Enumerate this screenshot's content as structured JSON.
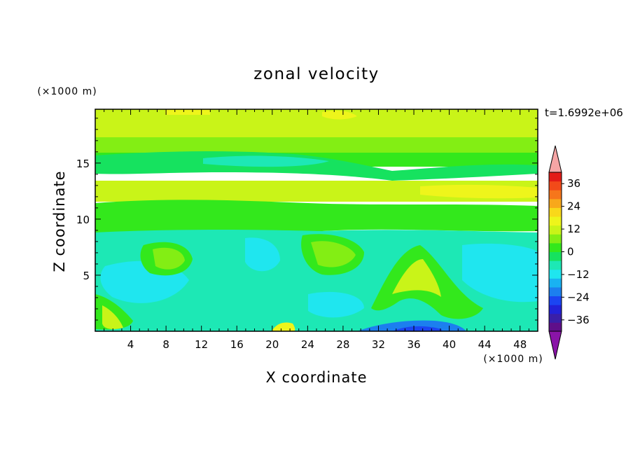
{
  "chart_data": {
    "type": "heatmap",
    "title": "zonal velocity",
    "xlabel": "X coordinate",
    "ylabel": "Z coordinate",
    "x_units": "(×1000 m)",
    "y_units": "(×1000 m)",
    "time_label": "t=1.6992e+06",
    "xlim": [
      0,
      50
    ],
    "ylim": [
      0,
      19.8
    ],
    "x_ticks": [
      4,
      8,
      12,
      16,
      20,
      24,
      28,
      32,
      36,
      40,
      44,
      48
    ],
    "x_tick_labels": [
      "4",
      "8",
      "12",
      "16",
      "20",
      "24",
      "28",
      "32",
      "36",
      "40",
      "44",
      "48"
    ],
    "y_ticks": [
      5,
      10,
      15
    ],
    "y_tick_labels": [
      "5",
      "10",
      "15"
    ],
    "colorbar": {
      "min": -42,
      "max": 42,
      "step": 6,
      "tick_values": [
        36,
        24,
        12,
        0,
        -12,
        -24,
        -36
      ],
      "tick_labels": [
        "36",
        "24",
        "12",
        "0",
        "−12",
        "−24",
        "−36"
      ],
      "colors": [
        "#5f0f8a",
        "#3a1fa8",
        "#2222d8",
        "#1b45f2",
        "#1c7fef",
        "#19b2f2",
        "#1fe6ef",
        "#1de8b5",
        "#16e25f",
        "#33e81c",
        "#83ee14",
        "#c9f418",
        "#eef51b",
        "#f9d81a",
        "#f8a81b",
        "#f6761b",
        "#f24a19",
        "#e31b17"
      ],
      "over_color": "#f6a5a5",
      "under_color": "#8a14a8"
    },
    "bands": [
      {
        "z_range": [
          17.2,
          19.8
        ],
        "value_range": [
          6,
          12
        ],
        "description_value": 8
      },
      {
        "z_range": [
          15.5,
          17.2
        ],
        "value_range": [
          0,
          6
        ],
        "description_value": 3
      },
      {
        "z_range": [
          13.2,
          15.5
        ],
        "value_range": [
          -6,
          6
        ],
        "description_value": -2
      },
      {
        "z_range": [
          10.5,
          13.2
        ],
        "value_range": [
          6,
          12
        ],
        "description_value": 7
      },
      {
        "z_range": [
          8.0,
          10.5
        ],
        "value_range": [
          0,
          6
        ],
        "description_value": 2
      },
      {
        "z_range": [
          1.0,
          8.0
        ],
        "value_range": [
          -12,
          0
        ],
        "description_value": -6
      },
      {
        "z_range": [
          0,
          1.0
        ],
        "value_range": [
          -30,
          6
        ],
        "description_value": -4
      }
    ]
  }
}
